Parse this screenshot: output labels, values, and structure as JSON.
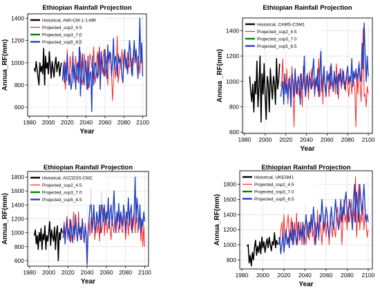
{
  "colors": {
    "historical": "#000000",
    "ssp2_4.5": "#ff2020",
    "ssp3_7.0": "#008000",
    "ssp5_8.5": "#1f3fbf"
  },
  "chart_data": [
    {
      "type": "line",
      "title": "Ethiopian Rainfall Projection",
      "xlabel": "Year",
      "ylabel": "Annua_RF(mm)",
      "xlim": [
        1978,
        2104
      ],
      "ylim": [
        520,
        1440
      ],
      "xticks": [
        1980,
        2000,
        2020,
        2040,
        2060,
        2080,
        2100
      ],
      "yticks": [
        600,
        800,
        1000,
        1200,
        1400
      ],
      "grid": true,
      "legend": "top-left",
      "legend_entries": [
        "Historical,   AWI-CM-1-1-MR",
        "Projected_ssp2_4.5",
        "Projected_ssp3_7.0",
        "Projected_ssp5_8.5"
      ],
      "series": [
        {
          "key": "historical",
          "x0": 1985,
          "values": [
            950,
            920,
            1010,
            940,
            870,
            800,
            1000,
            920,
            970,
            900,
            1130,
            800,
            1060,
            950,
            1000,
            900,
            1100,
            970,
            860,
            1010,
            940,
            870,
            990,
            1050,
            920,
            980,
            1010,
            880,
            960,
            1000
          ]
        },
        {
          "key": "ssp2_4.5",
          "x0": 2015,
          "values": [
            860,
            980,
            1020,
            760,
            900,
            1120,
            860,
            800,
            1060,
            950,
            880,
            1100,
            820,
            960,
            1060,
            880,
            840,
            1020,
            960,
            1100,
            860,
            800,
            920,
            1080,
            980,
            1020,
            860,
            760,
            900,
            1080,
            1040,
            960,
            940,
            1160,
            900,
            820,
            1000,
            1100,
            880,
            1180,
            960,
            1060,
            900,
            1040,
            1120,
            880,
            940,
            1060,
            800,
            960,
            1100,
            1020,
            880,
            660,
            860,
            1020,
            860,
            980,
            1240,
            820,
            900,
            1060,
            940,
            1120,
            1000,
            940,
            1100,
            1000,
            940,
            1100,
            980,
            960,
            1080,
            900,
            1040,
            980,
            1160,
            1000,
            1100,
            960,
            1060,
            1020,
            900,
            1080,
            1000,
            1020
          ]
        },
        {
          "key": "ssp3_7.0",
          "x0": 2015,
          "values": []
        },
        {
          "key": "ssp5_8.5",
          "x0": 2015,
          "values": [
            840,
            980,
            820,
            1000,
            840,
            1080,
            900,
            800,
            900,
            760,
            820,
            1060,
            860,
            980,
            760,
            960,
            1000,
            820,
            1260,
            700,
            900,
            1080,
            860,
            800,
            1020,
            900,
            760,
            1060,
            780,
            900,
            920,
            560,
            1060,
            800,
            980,
            1000,
            900,
            860,
            1060,
            1100,
            760,
            1100,
            1000,
            940,
            880,
            1120,
            960,
            860,
            1160,
            1000,
            1100,
            1080,
            880,
            1000,
            1220,
            940,
            1060,
            1020,
            880,
            1080,
            1000,
            1040,
            1020,
            880,
            820,
            1060,
            1120,
            960,
            1040,
            900,
            1020,
            1200,
            1100,
            960,
            880,
            1060,
            1200,
            1000,
            1120,
            1000,
            860,
            1060,
            1400,
            1000,
            1180,
            880
          ]
        }
      ]
    },
    {
      "type": "line",
      "title": "Ethiopian Rainfall Projection",
      "xlabel": "Year",
      "ylabel": "Annua _RF(mm)",
      "xlim": [
        1978,
        2104
      ],
      "ylim": [
        590,
        1500
      ],
      "xticks": [
        1980,
        2000,
        2020,
        2040,
        2060,
        2080,
        2100
      ],
      "yticks": [
        600,
        800,
        1000,
        1200,
        1400
      ],
      "grid": true,
      "legend": "top-left",
      "legend_entries": [
        "Historical,   CAMS-CSM1",
        "Projected_ssp2_4.5",
        "Projected_ssp3_7.0",
        "Projected_ssp5_8.5"
      ],
      "series": [
        {
          "key": "historical",
          "x0": 1985,
          "values": [
            1040,
            920,
            840,
            980,
            760,
            1000,
            900,
            1160,
            800,
            960,
            1200,
            680,
            1060,
            900,
            1140,
            880,
            700,
            1040,
            980,
            760,
            1100,
            960,
            860,
            1040,
            980,
            820,
            1180,
            940,
            1000,
            1140
          ]
        },
        {
          "key": "ssp2_4.5",
          "x0": 2015,
          "values": [
            960,
            1000,
            1180,
            860,
            1040,
            920,
            1100,
            820,
            980,
            1040,
            880,
            1120,
            960,
            640,
            1080,
            900,
            1000,
            940,
            880,
            1060,
            980,
            800,
            1120,
            960,
            900,
            1040,
            1000,
            860,
            1080,
            940,
            1100,
            960,
            1020,
            880,
            1000,
            1040,
            920,
            1180,
            880,
            1000,
            1060,
            820,
            1100,
            980,
            940,
            1060,
            1000,
            880,
            1120,
            960,
            1020,
            940,
            1080,
            900,
            1140,
            1000,
            860,
            1060,
            1020,
            940,
            1100,
            980,
            1000,
            920,
            1060,
            980,
            880,
            1000,
            1040,
            900,
            1060,
            1000,
            940,
            640,
            1060,
            900,
            1160,
            1000,
            840,
            1060,
            1420,
            880,
            900,
            800,
            960,
            900
          ]
        },
        {
          "key": "ssp3_7.0",
          "x0": 2015,
          "values": []
        },
        {
          "key": "ssp5_8.5",
          "x0": 2015,
          "values": [
            880,
            940,
            1000,
            820,
            1060,
            900,
            980,
            860,
            1020,
            940,
            800,
            1060,
            1000,
            880,
            1100,
            960,
            900,
            1040,
            980,
            820,
            1060,
            940,
            1000,
            1200,
            880,
            960,
            1060,
            920,
            1040,
            1000,
            940,
            1080,
            1180,
            900,
            1020,
            960,
            1100,
            880,
            1040,
            1260,
            920,
            1000,
            1120,
            960,
            880,
            1080,
            1000,
            1060,
            940,
            1140,
            1000,
            920,
            1080,
            980,
            1040,
            900,
            1060,
            1000,
            1100,
            960,
            1020,
            1080,
            940,
            1000,
            1060,
            1120,
            980,
            1040,
            1000,
            1180,
            960,
            1080,
            1020,
            1100,
            1000,
            1060,
            1140,
            1040,
            1000,
            1300,
            1100,
            1460,
            1180,
            1000,
            1200,
            1040
          ]
        }
      ]
    },
    {
      "type": "line",
      "title": "Ethiopian Rainfall Projection",
      "xlabel": "Year",
      "ylabel": "Annua_RF(mm)",
      "xlim": [
        1978,
        2104
      ],
      "ylim": [
        520,
        1880
      ],
      "xticks": [
        1980,
        2000,
        2020,
        2040,
        2060,
        2080,
        2100
      ],
      "yticks": [
        600,
        800,
        1000,
        1200,
        1400,
        1600,
        1800
      ],
      "grid": true,
      "legend": "top-left",
      "legend_entries": [
        "Historical,   ACCESS-CM2",
        "Projected_ssp2_4.5",
        "Projected_ssp3_7.0",
        "Projected_ssp5_8.5"
      ],
      "series": [
        {
          "key": "historical",
          "x0": 1985,
          "values": [
            960,
            1040,
            840,
            960,
            760,
            1000,
            880,
            1060,
            760,
            980,
            900,
            1100,
            760,
            960,
            880,
            1000,
            1160,
            820,
            1040,
            940,
            880,
            1080,
            760,
            1000,
            1100,
            600,
            1000,
            900,
            1060,
            1000
          ]
        },
        {
          "key": "ssp2_4.5",
          "x0": 2015,
          "values": [
            1000,
            1160,
            980,
            1100,
            1240,
            900,
            1020,
            1200,
            860,
            1000,
            1100,
            1300,
            900,
            1180,
            1000,
            880,
            1300,
            1000,
            900,
            1060,
            1200,
            980,
            860,
            1140,
            1000,
            700,
            1040,
            1180,
            960,
            1220,
            1000,
            1100,
            1300,
            900,
            1040,
            1200,
            1000,
            1140,
            880,
            1260,
            1000,
            1100,
            1360,
            960,
            1200,
            1300,
            1000,
            1140,
            1240,
            1040,
            900,
            1200,
            1100,
            1000,
            1300,
            1060,
            1200,
            1100,
            1000,
            1200,
            1300,
            1040,
            1000,
            1200,
            1260,
            900,
            1100,
            1200,
            960,
            1300,
            1240,
            1040,
            1200,
            1100,
            1300,
            1000,
            1240,
            1200,
            1000,
            1100,
            1300,
            880,
            1200,
            800,
            1100,
            800
          ]
        },
        {
          "key": "ssp3_7.0",
          "x0": 2015,
          "values": []
        },
        {
          "key": "ssp5_8.5",
          "x0": 2015,
          "values": [
            920,
            1100,
            840,
            1020,
            1200,
            940,
            1060,
            880,
            1180,
            1000,
            860,
            1100,
            960,
            1260,
            1000,
            880,
            1140,
            980,
            1080,
            900,
            1200,
            1000,
            860,
            1100,
            960,
            540,
            1000,
            1200,
            1360,
            1640,
            1000,
            1180,
            1400,
            1100,
            1000,
            1300,
            1200,
            1100,
            1400,
            1000,
            1600,
            1300,
            1160,
            1400,
            1100,
            1300,
            1200,
            1500,
            1060,
            1300,
            1400,
            1100,
            1300,
            1600,
            1200,
            1000,
            1300,
            1160,
            1420,
            1060,
            1300,
            1200,
            1100,
            1400,
            1260,
            1000,
            1300,
            1200,
            1500,
            1100,
            1300,
            1400,
            1000,
            1200,
            1300,
            1800,
            1140,
            1500,
            1300,
            1060,
            1400,
            1000,
            1200,
            1100,
            1300,
            1160
          ]
        }
      ]
    },
    {
      "type": "line",
      "title": "Ethiopian Rainfall Projection",
      "xlabel": "Year",
      "ylabel": "Annua_RF(mm)",
      "xlim": [
        1978,
        2104
      ],
      "ylim": [
        680,
        1980
      ],
      "xticks": [
        1980,
        2000,
        2020,
        2040,
        2060,
        2080,
        2100
      ],
      "yticks": [
        800,
        1000,
        1200,
        1400,
        1600,
        1800
      ],
      "grid": true,
      "legend": "top-left",
      "legend_entries": [
        "Historical,   UKESM1",
        "Projected_ssp2_4.5",
        "Projected_ssp3_7.0",
        "Projected_ssp5_8.5"
      ],
      "series": [
        {
          "key": "historical",
          "x0": 1985,
          "values": [
            980,
            1000,
            760,
            860,
            720,
            900,
            800,
            960,
            1060,
            860,
            980,
            900,
            1040,
            880,
            1100,
            960,
            1040,
            900,
            1000,
            1080,
            960,
            1100,
            1000,
            920,
            1040,
            1000,
            1160,
            960,
            1060,
            1000
          ]
        },
        {
          "key": "ssp2_4.5",
          "x0": 2015,
          "values": [
            1100,
            1000,
            1200,
            1300,
            1080,
            1400,
            1000,
            1160,
            1260,
            1400,
            1060,
            1200,
            1360,
            1000,
            1160,
            1300,
            1100,
            1420,
            1000,
            1200,
            1100,
            1300,
            1000,
            1200,
            1260,
            1100,
            1000,
            1300,
            1200,
            1060,
            1300,
            1400,
            1100,
            1200,
            1000,
            1300,
            1100,
            1460,
            1060,
            1300,
            1200,
            1000,
            1300,
            1160,
            1400,
            1100,
            1300,
            1200,
            1000,
            1400,
            1200,
            1100,
            1300,
            1200,
            1100,
            1400,
            1500,
            1200,
            1300,
            1400,
            1000,
            1300,
            1600,
            1300,
            1400,
            1200,
            1500,
            1300,
            1400,
            1600,
            1200,
            1500,
            1300,
            1900,
            1100,
            1400,
            1800,
            1200,
            1400,
            1300,
            1600,
            1200,
            1400,
            1300,
            1100,
            1200
          ]
        },
        {
          "key": "ssp3_7.0",
          "x0": 2015,
          "values": []
        },
        {
          "key": "ssp5_8.5",
          "x0": 2015,
          "values": [
            1000,
            1100,
            880,
            1000,
            1160,
            900,
            1060,
            1200,
            1000,
            1100,
            960,
            1200,
            1060,
            1300,
            1000,
            1200,
            1100,
            1000,
            1200,
            1300,
            1060,
            1200,
            1100,
            1300,
            1000,
            1200,
            1400,
            1200,
            1100,
            1300,
            1160,
            1400,
            1200,
            1500,
            1300,
            1000,
            1200,
            1300,
            1100,
            1400,
            1300,
            1600,
            1400,
            1200,
            1300,
            1500,
            1400,
            1200,
            1100,
            1300,
            1500,
            1300,
            1200,
            1400,
            1600,
            1400,
            1300,
            1200,
            1400,
            1600,
            1300,
            1500,
            1400,
            1600,
            1700,
            1400,
            1300,
            1600,
            1500,
            1400,
            1200,
            1600,
            1800,
            1300,
            1700,
            1500,
            1300,
            1800,
            1600,
            1400,
            1600,
            1800,
            1500,
            1300,
            1400,
            1300
          ]
        }
      ]
    }
  ]
}
